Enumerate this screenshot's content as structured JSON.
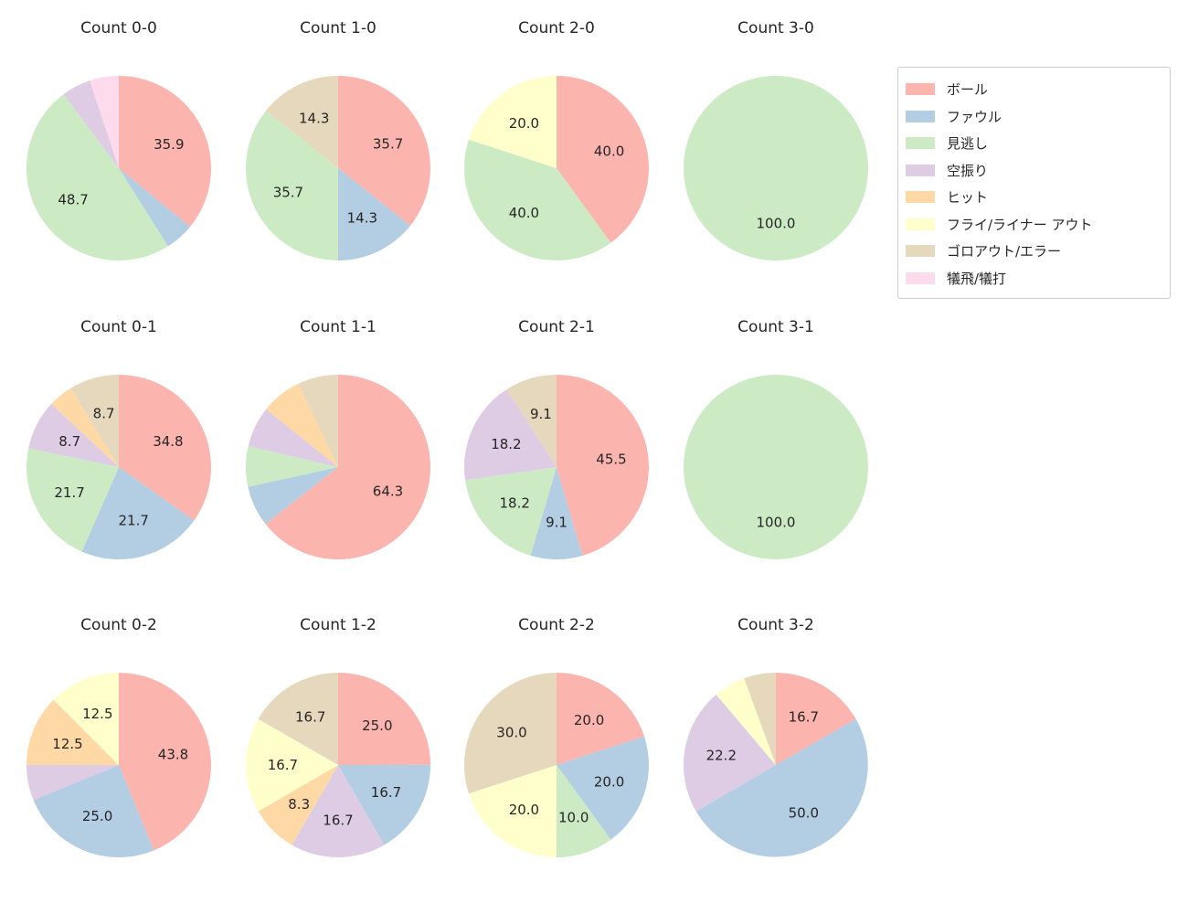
{
  "figure": {
    "background": "#ffffff",
    "text_color": "#262626"
  },
  "palette": {
    "ボール": "#fbb4ae",
    "ファウル": "#b3cde3",
    "見逃し": "#ccebc5",
    "空振り": "#decbe4",
    "ヒット": "#fed9a6",
    "フライ/ライナー アウト": "#ffffcc",
    "ゴロアウト/エラー": "#e5d8bd",
    "犠飛/犠打": "#fddaec"
  },
  "legend": {
    "position": "upper right",
    "items": [
      {
        "label": "ボール",
        "color": "#fbb4ae"
      },
      {
        "label": "ファウル",
        "color": "#b3cde3"
      },
      {
        "label": "見逃し",
        "color": "#ccebc5"
      },
      {
        "label": "空振り",
        "color": "#decbe4"
      },
      {
        "label": "ヒット",
        "color": "#fed9a6"
      },
      {
        "label": "フライ/ライナー アウト",
        "color": "#ffffcc"
      },
      {
        "label": "ゴロアウト/エラー",
        "color": "#e5d8bd"
      },
      {
        "label": "犠飛/犠打",
        "color": "#fddaec"
      }
    ]
  },
  "chart_data": [
    {
      "type": "pie",
      "title": "Count 0-0",
      "unit": "percent",
      "start_angle_deg": 90,
      "direction": "clockwise",
      "slices": [
        {
          "category": "ボール",
          "value": 35.9,
          "label": "35.9"
        },
        {
          "category": "ファウル",
          "value": 5.1
        },
        {
          "category": "見逃し",
          "value": 48.7,
          "label": "48.7"
        },
        {
          "category": "空振り",
          "value": 5.1
        },
        {
          "category": "犠飛/犠打",
          "value": 5.1
        }
      ]
    },
    {
      "type": "pie",
      "title": "Count 1-0",
      "unit": "percent",
      "start_angle_deg": 90,
      "direction": "clockwise",
      "slices": [
        {
          "category": "ボール",
          "value": 35.7,
          "label": "35.7"
        },
        {
          "category": "ファウル",
          "value": 14.3,
          "label": "14.3"
        },
        {
          "category": "見逃し",
          "value": 35.7,
          "label": "35.7"
        },
        {
          "category": "ゴロアウト/エラー",
          "value": 14.3,
          "label": "14.3"
        }
      ]
    },
    {
      "type": "pie",
      "title": "Count 2-0",
      "unit": "percent",
      "start_angle_deg": 90,
      "direction": "clockwise",
      "slices": [
        {
          "category": "ボール",
          "value": 40.0,
          "label": "40.0"
        },
        {
          "category": "見逃し",
          "value": 40.0,
          "label": "40.0"
        },
        {
          "category": "フライ/ライナー アウト",
          "value": 20.0,
          "label": "20.0"
        }
      ]
    },
    {
      "type": "pie",
      "title": "Count 3-0",
      "unit": "percent",
      "start_angle_deg": 90,
      "direction": "clockwise",
      "slices": [
        {
          "category": "見逃し",
          "value": 100.0,
          "label": "100.0"
        }
      ]
    },
    {
      "type": "pie",
      "title": "Count 0-1",
      "unit": "percent",
      "start_angle_deg": 90,
      "direction": "clockwise",
      "slices": [
        {
          "category": "ボール",
          "value": 34.8,
          "label": "34.8"
        },
        {
          "category": "ファウル",
          "value": 21.7,
          "label": "21.7"
        },
        {
          "category": "見逃し",
          "value": 21.7,
          "label": "21.7"
        },
        {
          "category": "空振り",
          "value": 8.7,
          "label": "8.7"
        },
        {
          "category": "ヒット",
          "value": 4.3
        },
        {
          "category": "ゴロアウト/エラー",
          "value": 8.7,
          "label": "8.7"
        }
      ]
    },
    {
      "type": "pie",
      "title": "Count 1-1",
      "unit": "percent",
      "start_angle_deg": 90,
      "direction": "clockwise",
      "slices": [
        {
          "category": "ボール",
          "value": 64.3,
          "label": "64.3"
        },
        {
          "category": "ファウル",
          "value": 7.1
        },
        {
          "category": "見逃し",
          "value": 7.1
        },
        {
          "category": "空振り",
          "value": 7.1
        },
        {
          "category": "ヒット",
          "value": 7.1
        },
        {
          "category": "ゴロアウト/エラー",
          "value": 7.1
        }
      ]
    },
    {
      "type": "pie",
      "title": "Count 2-1",
      "unit": "percent",
      "start_angle_deg": 90,
      "direction": "clockwise",
      "slices": [
        {
          "category": "ボール",
          "value": 45.5,
          "label": "45.5"
        },
        {
          "category": "ファウル",
          "value": 9.1,
          "label": "9.1"
        },
        {
          "category": "見逃し",
          "value": 18.2,
          "label": "18.2"
        },
        {
          "category": "空振り",
          "value": 18.2,
          "label": "18.2"
        },
        {
          "category": "ゴロアウト/エラー",
          "value": 9.1,
          "label": "9.1"
        }
      ]
    },
    {
      "type": "pie",
      "title": "Count 3-1",
      "unit": "percent",
      "start_angle_deg": 90,
      "direction": "clockwise",
      "slices": [
        {
          "category": "見逃し",
          "value": 100.0,
          "label": "100.0"
        }
      ]
    },
    {
      "type": "pie",
      "title": "Count 0-2",
      "unit": "percent",
      "start_angle_deg": 90,
      "direction": "clockwise",
      "slices": [
        {
          "category": "ボール",
          "value": 43.8,
          "label": "43.8"
        },
        {
          "category": "ファウル",
          "value": 25.0,
          "label": "25.0"
        },
        {
          "category": "空振り",
          "value": 6.2
        },
        {
          "category": "ヒット",
          "value": 12.5,
          "label": "12.5"
        },
        {
          "category": "フライ/ライナー アウト",
          "value": 12.5,
          "label": "12.5"
        }
      ]
    },
    {
      "type": "pie",
      "title": "Count 1-2",
      "unit": "percent",
      "start_angle_deg": 90,
      "direction": "clockwise",
      "slices": [
        {
          "category": "ボール",
          "value": 25.0,
          "label": "25.0"
        },
        {
          "category": "ファウル",
          "value": 16.7,
          "label": "16.7"
        },
        {
          "category": "空振り",
          "value": 16.7,
          "label": "16.7"
        },
        {
          "category": "ヒット",
          "value": 8.3,
          "label": "8.3"
        },
        {
          "category": "フライ/ライナー アウト",
          "value": 16.7,
          "label": "16.7"
        },
        {
          "category": "ゴロアウト/エラー",
          "value": 16.7,
          "label": "16.7"
        }
      ]
    },
    {
      "type": "pie",
      "title": "Count 2-2",
      "unit": "percent",
      "start_angle_deg": 90,
      "direction": "clockwise",
      "slices": [
        {
          "category": "ボール",
          "value": 20.0,
          "label": "20.0"
        },
        {
          "category": "ファウル",
          "value": 20.0,
          "label": "20.0"
        },
        {
          "category": "見逃し",
          "value": 10.0,
          "label": "10.0"
        },
        {
          "category": "フライ/ライナー アウト",
          "value": 20.0,
          "label": "20.0"
        },
        {
          "category": "ゴロアウト/エラー",
          "value": 30.0,
          "label": "30.0"
        }
      ]
    },
    {
      "type": "pie",
      "title": "Count 3-2",
      "unit": "percent",
      "start_angle_deg": 90,
      "direction": "clockwise",
      "slices": [
        {
          "category": "ボール",
          "value": 16.7,
          "label": "16.7"
        },
        {
          "category": "ファウル",
          "value": 50.0,
          "label": "50.0"
        },
        {
          "category": "空振り",
          "value": 22.2,
          "label": "22.2"
        },
        {
          "category": "フライ/ライナー アウト",
          "value": 5.6
        },
        {
          "category": "ゴロアウト/エラー",
          "value": 5.6
        }
      ]
    }
  ]
}
